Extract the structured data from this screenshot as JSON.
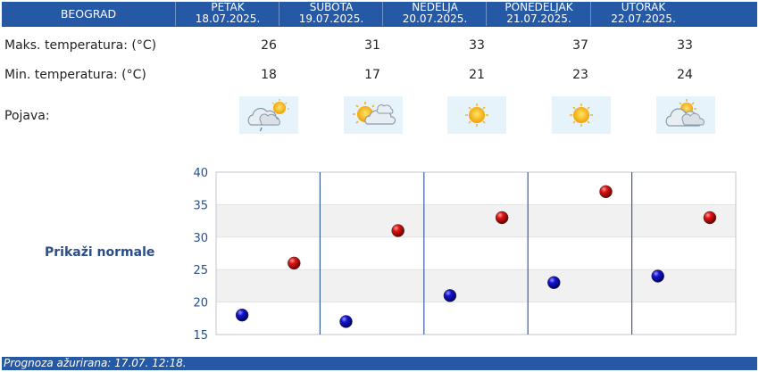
{
  "header": {
    "city": "BEOGRAD",
    "days": [
      {
        "day": "PETAK",
        "date": "18.07.2025."
      },
      {
        "day": "SUBOTA",
        "date": "19.07.2025."
      },
      {
        "day": "NEDELJA",
        "date": "20.07.2025."
      },
      {
        "day": "PONEDELJAK",
        "date": "21.07.2025."
      },
      {
        "day": "UTORAK",
        "date": "22.07.2025."
      }
    ]
  },
  "rows": {
    "max_label": "Maks. temperatura: (°C)",
    "min_label": "Min. temperatura: (°C)",
    "phenomenon_label": "Pojava:",
    "max": [
      "26",
      "31",
      "33",
      "37",
      "33"
    ],
    "min": [
      "18",
      "17",
      "21",
      "23",
      "24"
    ],
    "icons": [
      "partly-cloudy-rain-icon",
      "partly-cloudy-icon",
      "sunny-icon",
      "sunny-icon",
      "partly-cloudy-icon"
    ]
  },
  "normals_button": "Prikaži normale",
  "footer": "Prognoza ažurirana:  17.07. 12:18.",
  "chart_data": {
    "type": "scatter",
    "categories": [
      "18.07.2025.",
      "19.07.2025.",
      "20.07.2025.",
      "21.07.2025.",
      "22.07.2025."
    ],
    "series": [
      {
        "values": [
          26,
          31,
          33,
          37,
          33
        ],
        "color": "#cc0000"
      },
      {
        "values": [
          18,
          17,
          21,
          23,
          24
        ],
        "color": "#0000bb"
      }
    ],
    "ylim": [
      15,
      40
    ],
    "yticks": [
      "15",
      "20",
      "25",
      "30",
      "35",
      "40"
    ],
    "grid": true,
    "band_colors": [
      "#ffffff",
      "#f1f1f1"
    ]
  }
}
